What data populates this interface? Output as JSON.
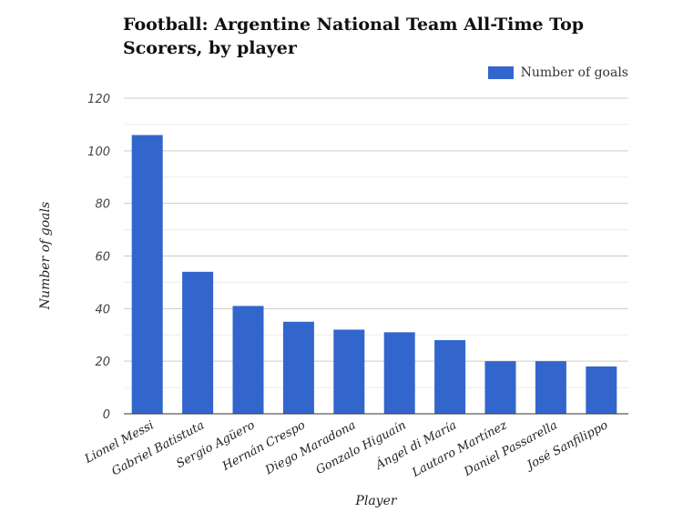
{
  "title": "Football: Argentine National Team All-Time Top Scorers, by player",
  "legend": {
    "label": "Number of goals",
    "color": "#3366cc"
  },
  "chart_data": {
    "type": "bar",
    "title": "Football: Argentine National Team All-Time Top Scorers, by player",
    "xlabel": "Player",
    "ylabel": "Number of goals",
    "ylim": [
      0,
      120
    ],
    "yticks": [
      0,
      20,
      40,
      60,
      80,
      100,
      120
    ],
    "grid": true,
    "legend_position": "top-right",
    "categories": [
      "Lionel Messi",
      "Gabriel Batistuta",
      "Sergio Agüero",
      "Hernán Crespo",
      "Diego Maradona",
      "Gonzalo Higuaín",
      "Ángel di María",
      "Lautaro Martínez",
      "Daniel Passarella",
      "José Sanfilippo"
    ],
    "series": [
      {
        "name": "Number of goals",
        "color": "#3366cc",
        "values": [
          106,
          54,
          41,
          35,
          32,
          31,
          28,
          20,
          20,
          18
        ]
      }
    ]
  }
}
